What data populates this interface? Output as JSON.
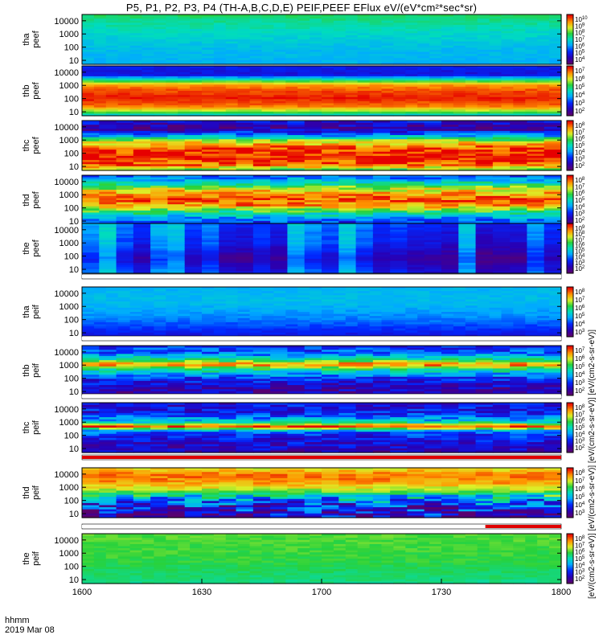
{
  "title": "P5, P1, P2, P3, P4 (TH-A,B,C,D,E) PEIF,PEEF EFlux eV/(eV*cm²*sec*sr)",
  "footer": {
    "line1": "hhmm",
    "line2": "2019 Mar 08"
  },
  "colorbar_unit": "[eV/(cm2-s-sr-eV)] [eV/(cm2-s-sr-eV)] [eV/(cm2-s-sr-eV)] [eV/(cm2-s-sr-eV)]",
  "colors": {
    "frame": "#000000",
    "flag_red": "#e00000",
    "flag_white": "#ffffff"
  },
  "chart_data": {
    "type": "heatmap",
    "x_ticks": [
      "1600",
      "1630",
      "1700",
      "1730",
      "1800"
    ],
    "x_range": [
      "1600",
      "1800"
    ],
    "y_scale": "log",
    "y_range": [
      5,
      30000
    ],
    "y_ticks": [
      "10000",
      "1000",
      "100",
      "10"
    ],
    "colormap": "rainbow (purple-blue-cyan-green-yellow-red)",
    "panels": [
      {
        "label": "tha\npeef",
        "cbar_ticks": [
          "10",
          "9",
          "8",
          "7",
          "6",
          "5",
          "4"
        ],
        "pattern": "smooth",
        "bands": [
          [
            1.0,
            0.6
          ],
          [
            0.9,
            0.55
          ],
          [
            0.6,
            0.48
          ],
          [
            0.3,
            0.42
          ],
          [
            0.0,
            0.4
          ]
        ]
      },
      {
        "label": "thb\npeef",
        "cbar_ticks": [
          "7",
          "6",
          "5",
          "4",
          "3",
          "2"
        ],
        "pattern": "smooth",
        "bands": [
          [
            1.0,
            0.22
          ],
          [
            0.82,
            0.18
          ],
          [
            0.72,
            0.55
          ],
          [
            0.62,
            0.85
          ],
          [
            0.5,
            0.93
          ],
          [
            0.35,
            0.98
          ],
          [
            0.18,
            0.88
          ],
          [
            0.05,
            0.6
          ],
          [
            0.0,
            0.4
          ]
        ]
      },
      {
        "label": "thc\npeef",
        "cbar_ticks": [
          "8",
          "7",
          "6",
          "5",
          "4",
          "3",
          "2"
        ],
        "pattern": "blocky",
        "bands": [
          [
            1.0,
            0.2
          ],
          [
            0.85,
            0.08
          ],
          [
            0.72,
            0.3
          ],
          [
            0.58,
            0.75
          ],
          [
            0.42,
            0.95
          ],
          [
            0.25,
            0.98
          ],
          [
            0.1,
            0.9
          ],
          [
            0.0,
            0.6
          ]
        ]
      },
      {
        "label": "thd\npeef",
        "cbar_ticks": [
          "8",
          "7",
          "6",
          "5",
          "4",
          "3",
          "2"
        ],
        "pattern": "blocky",
        "bands": [
          [
            1.0,
            0.25
          ],
          [
            0.82,
            0.55
          ],
          [
            0.68,
            0.8
          ],
          [
            0.55,
            0.92
          ],
          [
            0.4,
            0.88
          ],
          [
            0.25,
            0.55
          ],
          [
            0.12,
            0.35
          ],
          [
            0.0,
            0.2
          ]
        ]
      },
      {
        "label": "the\npeef",
        "cbar_ticks": [
          "9",
          "8",
          "7",
          "6",
          "5",
          "4",
          "3",
          "2"
        ],
        "pattern": "dark-blocks",
        "bands": [
          [
            1.0,
            0.35
          ],
          [
            0.6,
            0.3
          ],
          [
            0.3,
            0.2
          ],
          [
            0.0,
            0.3
          ]
        ]
      },
      {
        "label": "tha\npeif",
        "cbar_ticks": [
          "8",
          "7",
          "6",
          "5",
          "4",
          "3"
        ],
        "pattern": "smooth",
        "bands": [
          [
            1.0,
            0.4
          ],
          [
            0.7,
            0.42
          ],
          [
            0.4,
            0.35
          ],
          [
            0.15,
            0.25
          ],
          [
            0.0,
            0.18
          ]
        ]
      },
      {
        "label": "thb\npeif",
        "cbar_ticks": [
          "7",
          "6",
          "5",
          "4",
          "3",
          "2"
        ],
        "pattern": "blocky",
        "bands": [
          [
            1.0,
            0.22
          ],
          [
            0.85,
            0.3
          ],
          [
            0.72,
            0.55
          ],
          [
            0.62,
            0.9
          ],
          [
            0.52,
            0.55
          ],
          [
            0.35,
            0.25
          ],
          [
            0.15,
            0.12
          ],
          [
            0.0,
            0.1
          ]
        ]
      },
      {
        "label": "thc\npeif",
        "cbar_ticks": [
          "8",
          "7",
          "6",
          "5",
          "4",
          "3",
          "2"
        ],
        "pattern": "blocky",
        "bands": [
          [
            1.0,
            0.18
          ],
          [
            0.8,
            0.2
          ],
          [
            0.62,
            0.45
          ],
          [
            0.52,
            0.95
          ],
          [
            0.42,
            0.3
          ],
          [
            0.25,
            0.18
          ],
          [
            0.0,
            0.12
          ]
        ]
      },
      {
        "label": "thd\npeif",
        "cbar_ticks": [
          "8",
          "7",
          "6",
          "5",
          "4",
          "3"
        ],
        "pattern": "noisy",
        "bands": [
          [
            1.0,
            0.75
          ],
          [
            0.85,
            0.9
          ],
          [
            0.7,
            0.85
          ],
          [
            0.55,
            0.7
          ],
          [
            0.38,
            0.4
          ],
          [
            0.2,
            0.18
          ],
          [
            0.0,
            0.12
          ]
        ]
      },
      {
        "label": "the\npeif",
        "cbar_ticks": [
          "8",
          "7",
          "6",
          "5",
          "4",
          "3",
          "2"
        ],
        "pattern": "smooth",
        "bands": [
          [
            1.0,
            0.65
          ],
          [
            0.5,
            0.62
          ],
          [
            0.2,
            0.58
          ],
          [
            0.0,
            0.55
          ]
        ]
      }
    ],
    "flag_bars": [
      {
        "after_panel": 4,
        "segments": [
          [
            "1600",
            "1800",
            "white"
          ]
        ]
      },
      {
        "after_panel": 5,
        "segments": [
          [
            "1600",
            "1800",
            "white"
          ]
        ]
      },
      {
        "after_panel": 6,
        "segments": [
          [
            "1600",
            "1800",
            "white"
          ]
        ]
      },
      {
        "after_panel": 7,
        "segments": [
          [
            "1600",
            "1800",
            "red"
          ]
        ]
      },
      {
        "after_panel": 8,
        "segments": [
          [
            "1600",
            "1741",
            "white"
          ],
          [
            "1741",
            "1800",
            "red"
          ]
        ]
      }
    ]
  }
}
